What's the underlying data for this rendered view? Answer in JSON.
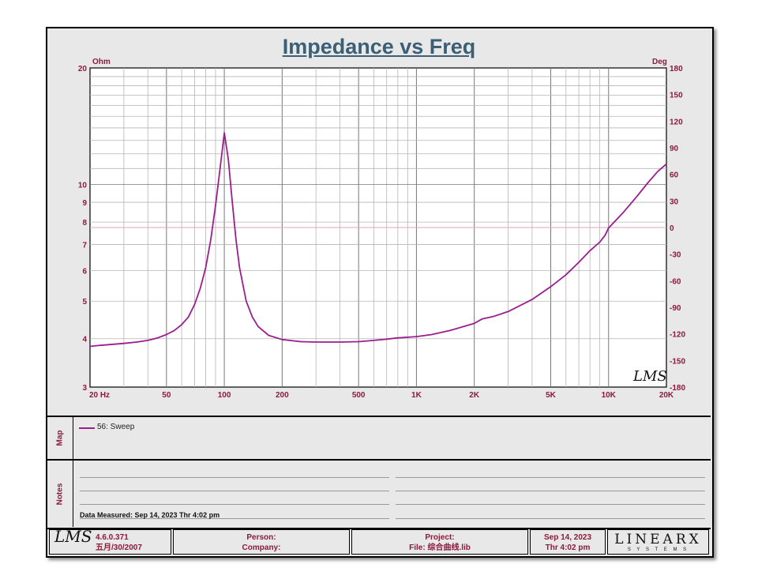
{
  "chart_data": {
    "type": "line",
    "title": "Impedance vs Freq",
    "x_scale": "log",
    "y_scale": "log",
    "xlim": [
      20,
      20000
    ],
    "ylim": [
      3,
      20
    ],
    "y2lim": [
      -180,
      180
    ],
    "ylabel": "Ohm",
    "y2label": "Deg",
    "x_ticks": [
      {
        "v": 20,
        "label": "20  Hz"
      },
      {
        "v": 50,
        "label": "50"
      },
      {
        "v": 100,
        "label": "100"
      },
      {
        "v": 200,
        "label": "200"
      },
      {
        "v": 500,
        "label": "500"
      },
      {
        "v": 1000,
        "label": "1K"
      },
      {
        "v": 2000,
        "label": "2K"
      },
      {
        "v": 5000,
        "label": "5K"
      },
      {
        "v": 10000,
        "label": "10K"
      },
      {
        "v": 20000,
        "label": "20K"
      }
    ],
    "y_ticks": [
      {
        "v": 20,
        "label": "20"
      },
      {
        "v": 10,
        "label": "10"
      },
      {
        "v": 9,
        "label": "9"
      },
      {
        "v": 8,
        "label": "8"
      },
      {
        "v": 7,
        "label": "7"
      },
      {
        "v": 6,
        "label": "6"
      },
      {
        "v": 5,
        "label": "5"
      },
      {
        "v": 4,
        "label": "4"
      },
      {
        "v": 3,
        "label": "3"
      }
    ],
    "y2_ticks": [
      180,
      150,
      120,
      90,
      60,
      30,
      0,
      -30,
      -60,
      -90,
      -120,
      -150,
      -180
    ],
    "grid": true,
    "series": [
      {
        "name": "56: Sweep",
        "color": "#9b1e8e",
        "points": [
          [
            20,
            3.82
          ],
          [
            22,
            3.84
          ],
          [
            25,
            3.86
          ],
          [
            30,
            3.89
          ],
          [
            35,
            3.92
          ],
          [
            40,
            3.96
          ],
          [
            45,
            4.02
          ],
          [
            50,
            4.1
          ],
          [
            55,
            4.2
          ],
          [
            60,
            4.35
          ],
          [
            65,
            4.55
          ],
          [
            70,
            4.9
          ],
          [
            75,
            5.4
          ],
          [
            80,
            6.1
          ],
          [
            85,
            7.2
          ],
          [
            90,
            8.8
          ],
          [
            95,
            11.0
          ],
          [
            100,
            13.6
          ],
          [
            105,
            11.6
          ],
          [
            110,
            9.0
          ],
          [
            115,
            7.2
          ],
          [
            120,
            6.1
          ],
          [
            130,
            5.0
          ],
          [
            140,
            4.55
          ],
          [
            150,
            4.3
          ],
          [
            170,
            4.08
          ],
          [
            200,
            3.98
          ],
          [
            250,
            3.93
          ],
          [
            300,
            3.92
          ],
          [
            400,
            3.92
          ],
          [
            500,
            3.93
          ],
          [
            600,
            3.96
          ],
          [
            700,
            3.99
          ],
          [
            800,
            4.02
          ],
          [
            1000,
            4.05
          ],
          [
            1200,
            4.1
          ],
          [
            1500,
            4.2
          ],
          [
            2000,
            4.38
          ],
          [
            2200,
            4.5
          ],
          [
            2500,
            4.56
          ],
          [
            3000,
            4.7
          ],
          [
            4000,
            5.05
          ],
          [
            5000,
            5.45
          ],
          [
            6000,
            5.85
          ],
          [
            7000,
            6.3
          ],
          [
            8000,
            6.75
          ],
          [
            9000,
            7.1
          ],
          [
            9600,
            7.4
          ],
          [
            10000,
            7.72
          ],
          [
            12000,
            8.5
          ],
          [
            14000,
            9.3
          ],
          [
            16000,
            10.1
          ],
          [
            18000,
            10.8
          ],
          [
            20000,
            11.3
          ]
        ]
      }
    ],
    "reference_line": {
      "y2": 0,
      "color": "#e8a0b4"
    },
    "watermark": "LMS"
  },
  "legend": {
    "label": "56: Sweep"
  },
  "map_label": "Map",
  "notes_label": "Notes",
  "data_measured": "Data Measured: Sep 14, 2023  Thr  4:02 pm",
  "footer": {
    "logo": "LMS",
    "version": "4.6.0.371",
    "version_date": "五月/30/2007",
    "person": "Person:",
    "company": "Company:",
    "project": "Project:",
    "file": "File: 综合曲线.lib",
    "date": "Sep 14, 2023",
    "time": "Thr  4:02 pm",
    "brand": "LINEARX",
    "brand_sub": "S Y S T E M S"
  }
}
